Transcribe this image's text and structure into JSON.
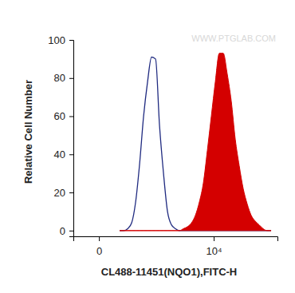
{
  "chart_data": {
    "type": "line",
    "x_label": "CL488-11451(NQO1),FITC-H",
    "y_label": "Relative Cell Number",
    "annotation": "WWW.PTGLAB.COM",
    "log": "x",
    "grid": false,
    "xlim": [
      -180,
      131000
    ],
    "xticks": [
      {
        "value": 0,
        "label": "0"
      },
      {
        "value": 10000,
        "label": "10⁴"
      }
    ],
    "ylim": [
      -3,
      100
    ],
    "yticks": [
      0,
      20,
      40,
      60,
      80,
      100
    ],
    "x": [
      130,
      170,
      217,
      272,
      337,
      413,
      502,
      606,
      729,
      874,
      1043,
      1241,
      1474,
      1748,
      2069,
      2446,
      2888,
      3408,
      4018,
      4733,
      5572,
      6561,
      7719,
      9075,
      10670,
      12550,
      14740,
      17320,
      20340,
      23910,
      28080,
      32980,
      38720,
      45490,
      53410,
      62710,
      73610,
      86460,
      101500
    ],
    "series": [
      {
        "type": "line",
        "color": "#1f2a80",
        "values": [
          0,
          0,
          1,
          4,
          15,
          35,
          60,
          78,
          91,
          90,
          55,
          30,
          10,
          3,
          1,
          0,
          0,
          0,
          0,
          0,
          0,
          0,
          0,
          0,
          0,
          0,
          0,
          0,
          0,
          0,
          0,
          0,
          0,
          0,
          0,
          0,
          0,
          0,
          0
        ]
      },
      {
        "type": "area",
        "color": "#d40000",
        "values": [
          0,
          0,
          0,
          0,
          0,
          0,
          0,
          0,
          0,
          0,
          0,
          0,
          0,
          0,
          0,
          0,
          1,
          2,
          4,
          8,
          15,
          25,
          42,
          60,
          78,
          93,
          93,
          82,
          68,
          48,
          34,
          22,
          14,
          8,
          5,
          3,
          1,
          0,
          0
        ]
      }
    ]
  }
}
